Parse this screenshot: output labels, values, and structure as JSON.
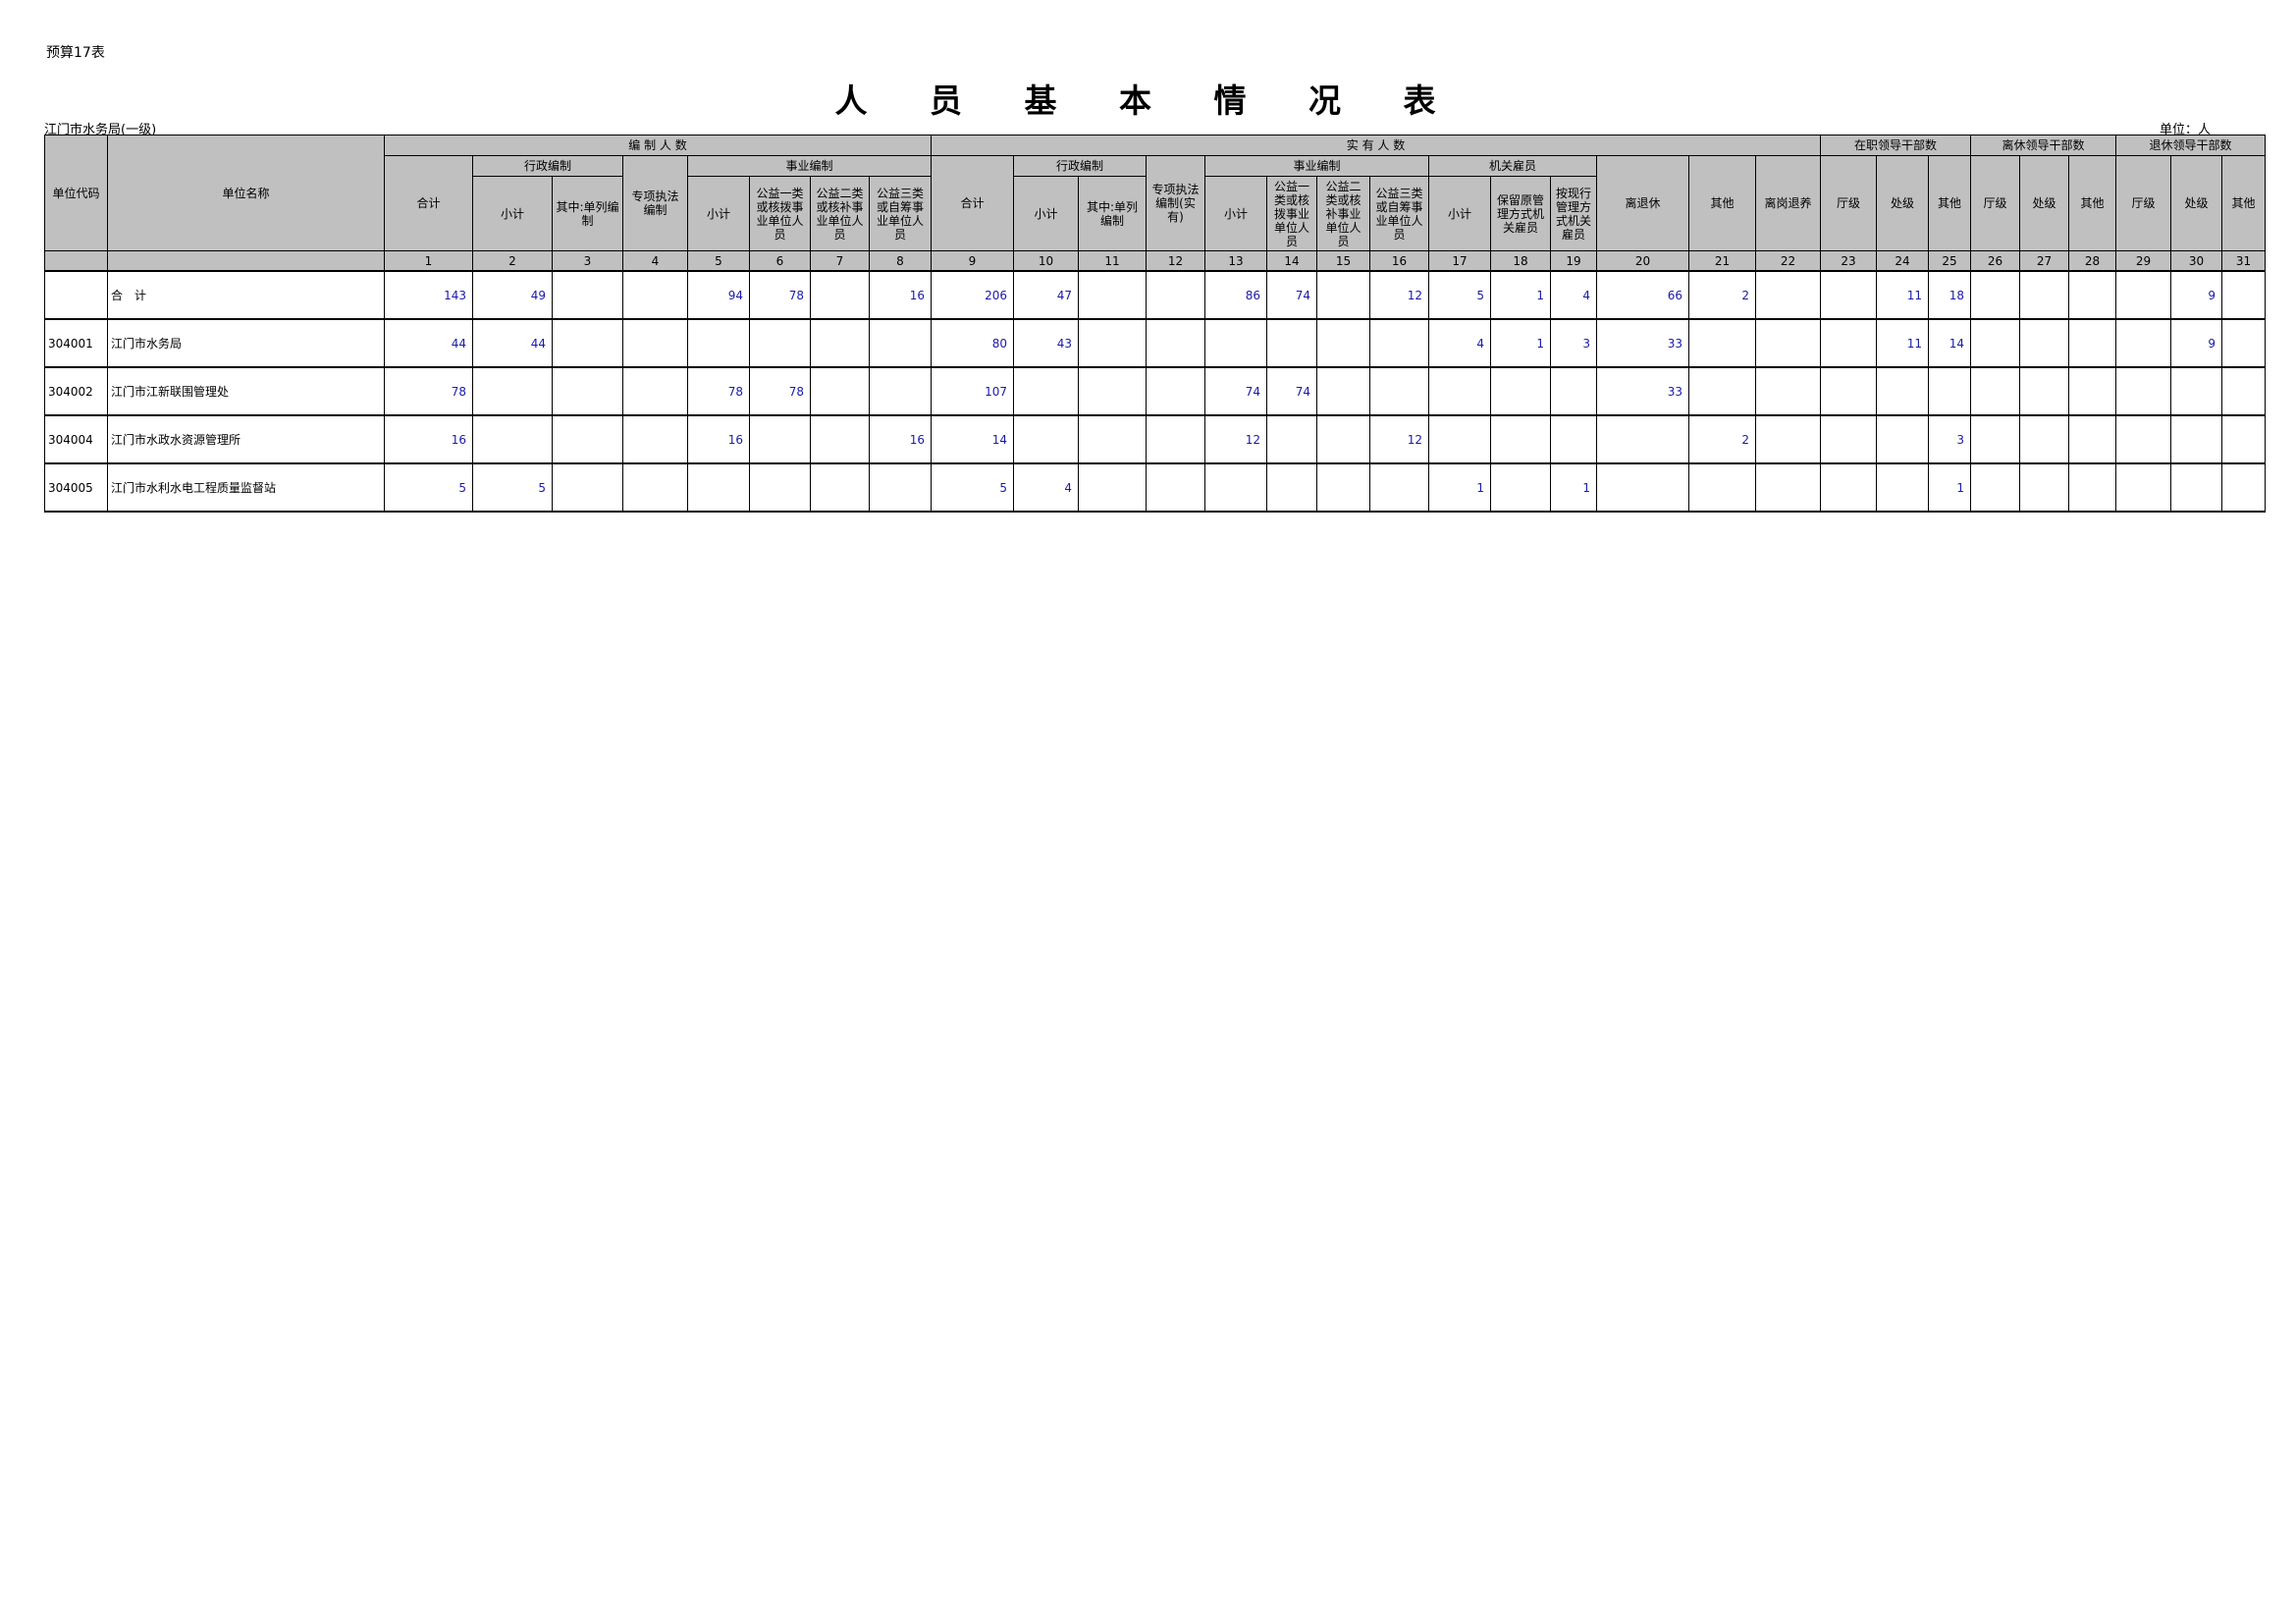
{
  "form_no": "预算17表",
  "title": "人 员 基 本 情 况 表",
  "org": "江门市水务局(一级)",
  "unit": "单位：人",
  "header": {
    "code": "单位代码",
    "name": "单位名称",
    "groups": {
      "authorized": "编 制 人 数",
      "actual": "实 有 人 数",
      "inservice_leaders": "在职领导干部数",
      "lixiu_leaders": "离休领导干部数",
      "tuixiu_leaders": "退休领导干部数"
    },
    "auth": {
      "total": "合计",
      "admin": "行政编制",
      "admin_sub": "小计",
      "admin_single": "其中:单列编制",
      "special": "专项执法编制",
      "inst": "事业编制",
      "inst_sub": "小计",
      "inst_1": "公益一类或核拨事业单位人员",
      "inst_2": "公益二类或核补事业单位人员",
      "inst_3": "公益三类或自筹事业单位人员"
    },
    "actual": {
      "total": "合计",
      "admin": "行政编制",
      "admin_sub": "小计",
      "admin_single": "其中:单列编制",
      "special": "专项执法编制(实有)",
      "inst": "事业编制",
      "inst_sub": "小计",
      "inst_1": "公益一类或核拨事业单位人员",
      "inst_2": "公益二类或核补事业单位人员",
      "inst_3": "公益三类或自筹事业单位人员",
      "employee": "机关雇员",
      "emp_sub": "小计",
      "emp_keep": "保留原管理方式机关雇员",
      "emp_current": "按现行管理方式机关雇员",
      "retired": "离退休",
      "other": "其他",
      "early": "离岗退养"
    },
    "levels": [
      "厅级",
      "处级",
      "其他",
      "厅级",
      "处级",
      "其他",
      "厅级",
      "处级",
      "其他"
    ],
    "col_numbers": [
      "1",
      "2",
      "3",
      "4",
      "5",
      "6",
      "7",
      "8",
      "9",
      "10",
      "11",
      "12",
      "13",
      "14",
      "15",
      "16",
      "17",
      "18",
      "19",
      "20",
      "21",
      "22",
      "23",
      "24",
      "25",
      "26",
      "27",
      "28",
      "29",
      "30",
      "31"
    ]
  },
  "rows": [
    {
      "code": "",
      "name": "合　计",
      "values": [
        "143",
        "49",
        "",
        "",
        "94",
        "78",
        "",
        "16",
        "206",
        "47",
        "",
        "",
        "86",
        "74",
        "",
        "12",
        "5",
        "1",
        "4",
        "66",
        "2",
        "",
        "",
        "11",
        "18",
        "",
        "",
        "",
        "",
        "9",
        ""
      ]
    },
    {
      "code": "304001",
      "name": "江门市水务局",
      "values": [
        "44",
        "44",
        "",
        "",
        "",
        "",
        "",
        "",
        "80",
        "43",
        "",
        "",
        "",
        "",
        "",
        "",
        "4",
        "1",
        "3",
        "33",
        "",
        "",
        "",
        "11",
        "14",
        "",
        "",
        "",
        "",
        "9",
        ""
      ]
    },
    {
      "code": "304002",
      "name": "江门市江新联围管理处",
      "values": [
        "78",
        "",
        "",
        "",
        "78",
        "78",
        "",
        "",
        "107",
        "",
        "",
        "",
        "74",
        "74",
        "",
        "",
        "",
        "",
        "",
        "33",
        "",
        "",
        "",
        "",
        "",
        "",
        "",
        "",
        "",
        "",
        ""
      ]
    },
    {
      "code": "304004",
      "name": "江门市水政水资源管理所",
      "values": [
        "16",
        "",
        "",
        "",
        "16",
        "",
        "",
        "16",
        "14",
        "",
        "",
        "",
        "12",
        "",
        "",
        "12",
        "",
        "",
        "",
        "",
        "2",
        "",
        "",
        "",
        "3",
        "",
        "",
        "",
        "",
        "",
        ""
      ]
    },
    {
      "code": "304005",
      "name": "江门市水利水电工程质量监督站",
      "values": [
        "5",
        "5",
        "",
        "",
        "",
        "",
        "",
        "",
        "5",
        "4",
        "",
        "",
        "",
        "",
        "",
        "",
        "1",
        "",
        "1",
        "",
        "",
        "",
        "",
        "",
        "1",
        "",
        "",
        "",
        "",
        "",
        ""
      ]
    }
  ]
}
